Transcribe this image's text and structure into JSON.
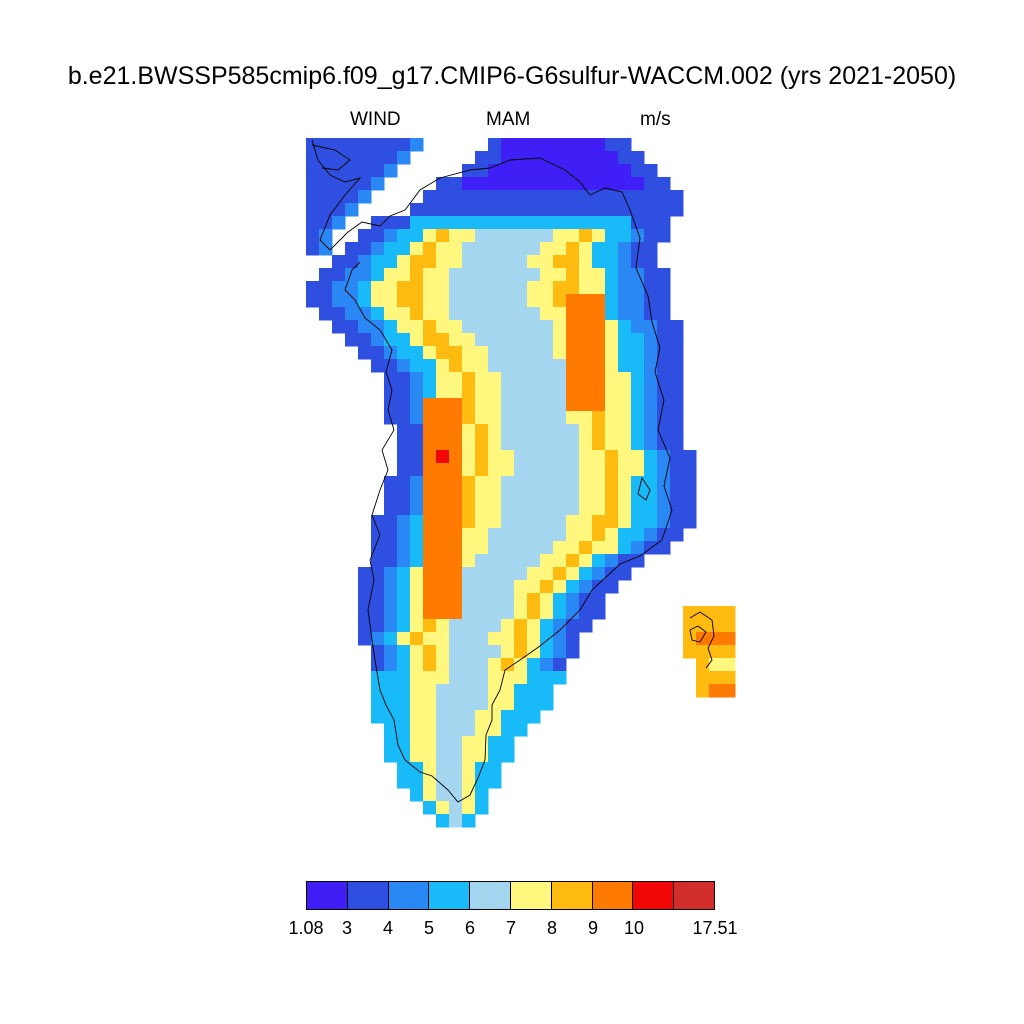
{
  "title": "b.e21.BWSSP585cmip6.f09_g17.CMIP6-G6sulfur-WACCM.002 (yrs 2021-2050)",
  "subtitle": {
    "variable": "WIND",
    "season": "MAM",
    "units": "m/s"
  },
  "colorbar": {
    "colors": [
      "#3f1ff5",
      "#2f4fe0",
      "#2a88f5",
      "#18bbf7",
      "#a4d6f0",
      "#fff77e",
      "#ffbb10",
      "#ff7a00",
      "#f20707",
      "#d12d2a"
    ],
    "labels": [
      "1.08",
      "3",
      "4",
      "5",
      "6",
      "7",
      "8",
      "9",
      "10",
      "17.51"
    ]
  },
  "map": {
    "region": "Greenland",
    "cells_legend": "value index 0-9 into colorbar.colors"
  }
}
